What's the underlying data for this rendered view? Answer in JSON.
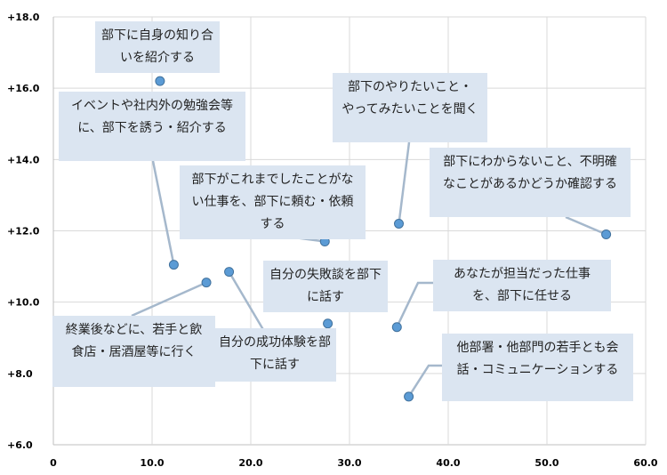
{
  "chart_data": {
    "type": "scatter",
    "xlim": [
      0,
      60
    ],
    "ylim": [
      6,
      18
    ],
    "x_ticks": [
      "0",
      "10.0",
      "20.0",
      "30.0",
      "40.0",
      "50.0",
      "60.0"
    ],
    "y_ticks": [
      "+6.0",
      "+8.0",
      "+10.0",
      "+12.0",
      "+14.0",
      "+16.0",
      "+18.0"
    ],
    "grid": true,
    "point_color": "#5b9bd5",
    "label_color": "#dbe5f1",
    "points": [
      {
        "x": 10.8,
        "y": 16.2,
        "label": "部下に自身の知り合\nいを紹介する"
      },
      {
        "x": 12.2,
        "y": 11.05,
        "label": "イベントや社内外の勉強会等\nに、部下を誘う・紹介する"
      },
      {
        "x": 15.5,
        "y": 10.55,
        "label": "終業後などに、若手と飲\n食店・居酒屋等に行く"
      },
      {
        "x": 17.8,
        "y": 10.85,
        "label": "自分の成功体験を部\n下に話す"
      },
      {
        "x": 27.5,
        "y": 11.7,
        "label": "部下がこれまでしたことがな\nい仕事を、部下に頼む・依頼\nする"
      },
      {
        "x": 27.8,
        "y": 9.4,
        "label": "自分の失敗談を部下\nに話す"
      },
      {
        "x": 34.8,
        "y": 9.3,
        "label": "あなたが担当だった仕事\nを、部下に任せる"
      },
      {
        "x": 35.0,
        "y": 12.2,
        "label": "部下のやりたいこと・\nやってみたいことを聞く"
      },
      {
        "x": 36.0,
        "y": 7.35,
        "label": "他部署・他部門の若手とも会\n話・コミュニケーションする"
      },
      {
        "x": 56.0,
        "y": 11.9,
        "label": "部下にわからないこと、不明確\nなことがあるかどうか確認する"
      }
    ]
  }
}
